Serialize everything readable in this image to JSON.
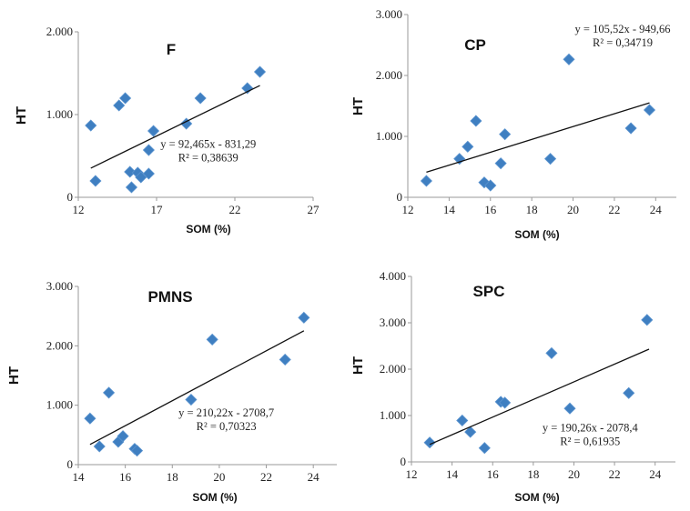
{
  "marker_color": "#3f7fc1",
  "trend_color": "#111111",
  "chart_data": [
    {
      "type": "scatter",
      "title": "F",
      "xlabel": "SOM (%)",
      "ylabel": "HT",
      "xlim": [
        12,
        27
      ],
      "ylim": [
        0,
        2000
      ],
      "xticks": [
        12,
        17,
        22,
        27
      ],
      "xtick_labels": [
        "12",
        "17",
        "22",
        "27"
      ],
      "yticks": [
        0,
        1000,
        2000
      ],
      "ytick_labels": [
        "0",
        "1.000",
        "2.000"
      ],
      "grid": false,
      "x": [
        12.8,
        13.1,
        14.6,
        15.0,
        15.3,
        15.4,
        15.8,
        16.0,
        16.5,
        16.5,
        16.8,
        18.9,
        19.8,
        22.8,
        23.6
      ],
      "y": [
        868,
        198,
        1110,
        1198,
        308,
        121,
        297,
        242,
        286,
        571,
        802,
        890,
        1198,
        1319,
        1516
      ],
      "trendline": {
        "slope": 92.465,
        "intercept": -831.29,
        "x_range": [
          12.8,
          23.6
        ]
      },
      "equation": "y = 92,465x - 831,29",
      "r_squared": "R² = 0,38639",
      "equation_anchor": [
        20.3,
        600
      ]
    },
    {
      "type": "scatter",
      "title": "CP",
      "xlabel": "SOM (%)",
      "ylabel": "HT",
      "xlim": [
        12,
        25
      ],
      "ylim": [
        0,
        3000
      ],
      "xticks": [
        12,
        14,
        16,
        18,
        20,
        22,
        24
      ],
      "xtick_labels": [
        "12",
        "14",
        "16",
        "18",
        "20",
        "22",
        "24"
      ],
      "yticks": [
        0,
        1000,
        2000,
        3000
      ],
      "ytick_labels": [
        "0",
        "1.000",
        "2.000",
        "3.000"
      ],
      "grid": false,
      "x": [
        12.9,
        14.5,
        14.9,
        15.3,
        15.7,
        16.0,
        16.5,
        16.7,
        18.9,
        19.8,
        22.8,
        23.7
      ],
      "y": [
        269,
        632,
        831,
        1254,
        244,
        194,
        557,
        1035,
        632,
        2264,
        1134,
        1433
      ],
      "trendline": {
        "slope": 105.52,
        "intercept": -949.66,
        "x_range": [
          12.9,
          23.7
        ]
      },
      "equation": "y = 105,52x - 949,66",
      "r_squared": "R² = 0,34719",
      "equation_anchor": [
        22.4,
        2700
      ]
    },
    {
      "type": "scatter",
      "title": "PMNS",
      "xlabel": "SOM (%)",
      "ylabel": "HT",
      "xlim": [
        14,
        25
      ],
      "ylim": [
        0,
        3000
      ],
      "xticks": [
        14,
        16,
        18,
        20,
        22,
        24
      ],
      "xtick_labels": [
        "14",
        "16",
        "18",
        "20",
        "22",
        "24"
      ],
      "yticks": [
        0,
        1000,
        2000,
        3000
      ],
      "ytick_labels": [
        "0",
        "1.000",
        "2.000",
        "3.000"
      ],
      "grid": false,
      "x": [
        14.5,
        14.9,
        15.3,
        15.7,
        15.9,
        16.4,
        16.5,
        18.8,
        19.7,
        22.8,
        23.6
      ],
      "y": [
        777,
        307,
        1211,
        383,
        480,
        266,
        235,
        1094,
        2106,
        1768,
        2474
      ],
      "trendline": {
        "slope": 210.22,
        "intercept": -2708.7,
        "x_range": [
          14.5,
          23.6
        ]
      },
      "equation": "y = 210,22x - 2708,7",
      "r_squared": "R² = 0,70323",
      "equation_anchor": [
        20.3,
        810
      ]
    },
    {
      "type": "scatter",
      "title": "SPC",
      "xlabel": "SOM (%)",
      "ylabel": "HT",
      "xlim": [
        12,
        25
      ],
      "ylim": [
        0,
        4000
      ],
      "xticks": [
        12,
        14,
        16,
        18,
        20,
        22,
        24
      ],
      "xtick_labels": [
        "12",
        "14",
        "16",
        "18",
        "20",
        "22",
        "24"
      ],
      "yticks": [
        0,
        1000,
        2000,
        3000,
        4000
      ],
      "ytick_labels": [
        "0",
        "1.000",
        "2.000",
        "3.000",
        "4.000"
      ],
      "grid": false,
      "x": [
        12.9,
        14.5,
        14.9,
        15.6,
        16.4,
        16.6,
        18.9,
        19.8,
        22.7,
        23.6
      ],
      "y": [
        417,
        893,
        645,
        300,
        1296,
        1277,
        2345,
        1153,
        1485,
        3062
      ],
      "trendline": {
        "slope": 190.26,
        "intercept": -2078.4,
        "x_range": [
          12.9,
          23.7
        ]
      },
      "equation": "y = 190,26x - 2078,4",
      "r_squared": "R² = 0,61935",
      "equation_anchor": [
        20.8,
        660
      ]
    }
  ]
}
